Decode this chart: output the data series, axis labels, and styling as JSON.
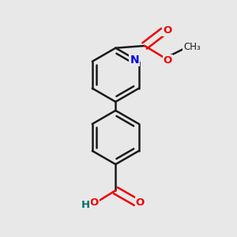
{
  "background_color": "#e8e8e8",
  "bond_color": "#1a1a1a",
  "bond_width": 1.8,
  "N_color": "#0000ee",
  "O_color": "#ee0000",
  "H_color": "#007070",
  "fig_size": [
    3.0,
    3.0
  ],
  "dpi": 100,
  "xlim": [
    -0.3,
    1.0
  ],
  "ylim": [
    -0.85,
    0.75
  ]
}
